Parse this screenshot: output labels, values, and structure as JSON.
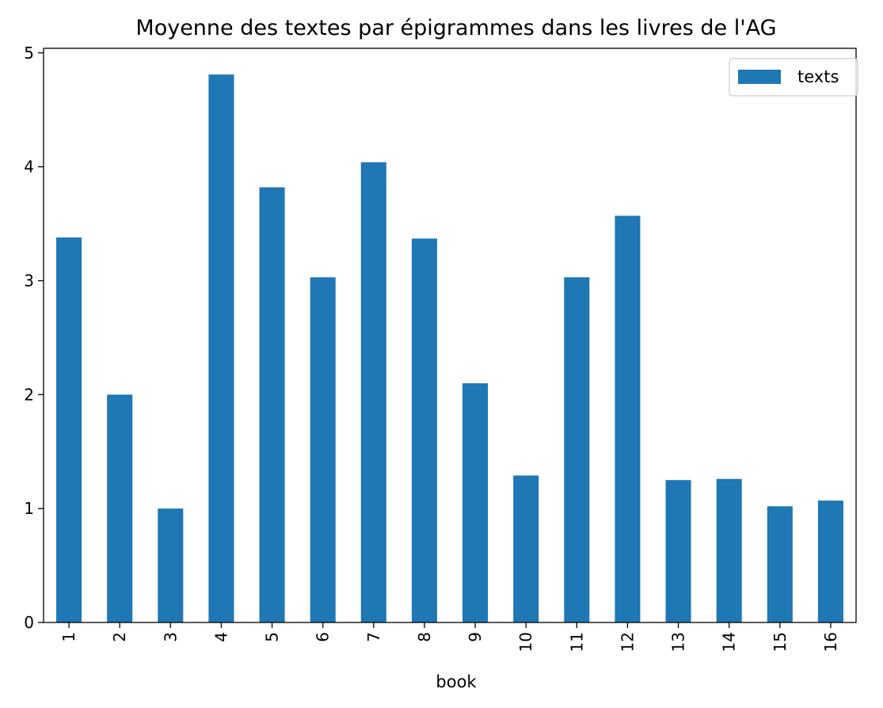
{
  "chart_data": {
    "type": "bar",
    "title": "Moyenne des textes par épigrammes dans les livres de l'AG",
    "xlabel": "book",
    "ylabel": "",
    "categories": [
      "1",
      "2",
      "3",
      "4",
      "5",
      "6",
      "7",
      "8",
      "9",
      "10",
      "11",
      "12",
      "13",
      "14",
      "15",
      "16"
    ],
    "series": [
      {
        "name": "texts",
        "values": [
          3.38,
          2.0,
          1.0,
          4.81,
          3.82,
          3.03,
          4.04,
          3.37,
          2.1,
          1.29,
          3.03,
          3.57,
          1.25,
          1.26,
          1.02,
          1.07
        ]
      }
    ],
    "ylim": [
      0,
      5.04
    ],
    "yticks": [
      0,
      1,
      2,
      3,
      4,
      5
    ],
    "grid": false,
    "legend": "top-right",
    "colors": {
      "bar": "#1f77b4"
    }
  }
}
